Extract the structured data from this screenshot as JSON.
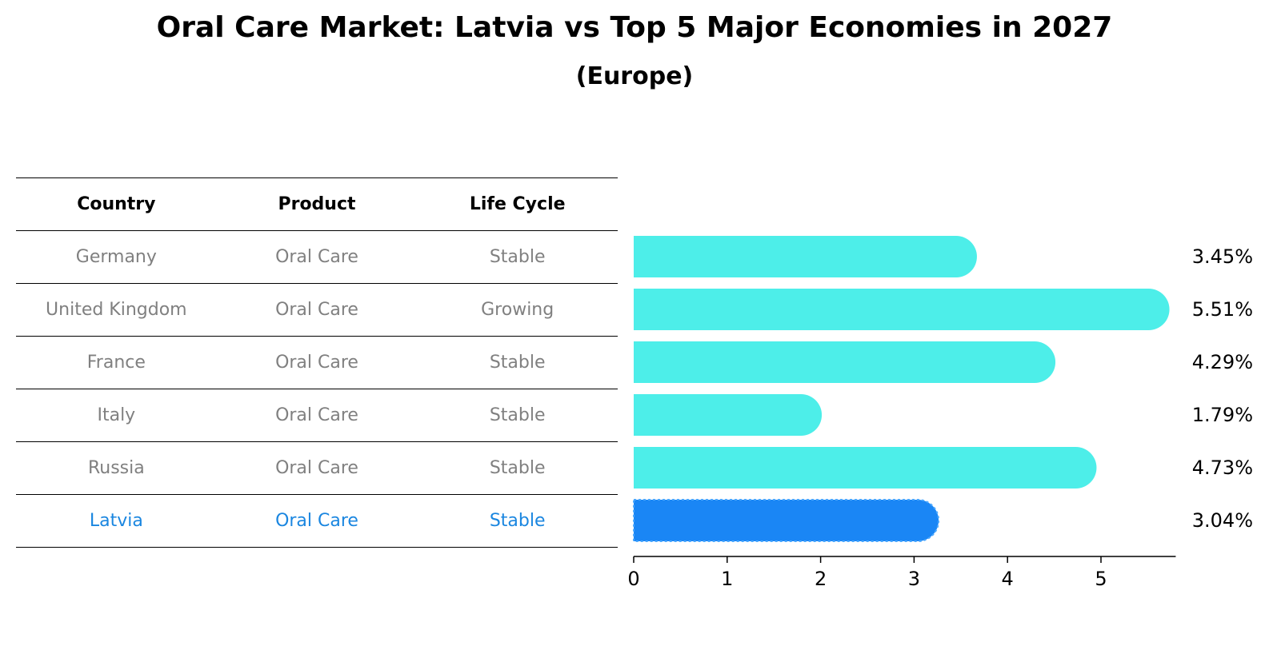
{
  "title": "Oral Care Market: Latvia vs Top 5 Major Economies in 2027",
  "subtitle": "(Europe)",
  "table": {
    "headers": [
      "Country",
      "Product",
      "Life Cycle"
    ],
    "rows": [
      {
        "country": "Germany",
        "product": "Oral Care",
        "life_cycle": "Stable"
      },
      {
        "country": "United Kingdom",
        "product": "Oral Care",
        "life_cycle": "Growing"
      },
      {
        "country": "France",
        "product": "Oral Care",
        "life_cycle": "Stable"
      },
      {
        "country": "Italy",
        "product": "Oral Care",
        "life_cycle": "Stable"
      },
      {
        "country": "Russia",
        "product": "Oral Care",
        "life_cycle": "Stable"
      },
      {
        "country": "Latvia",
        "product": "Oral Care",
        "life_cycle": "Stable"
      }
    ],
    "highlight_country": "Latvia"
  },
  "colors": {
    "bar": "#4deee9",
    "highlight_bar": "#1a86f5",
    "highlight_text": "#1a86e0",
    "muted_text": "#808080"
  },
  "chart_data": {
    "type": "bar",
    "orientation": "horizontal",
    "categories": [
      "Germany",
      "United Kingdom",
      "France",
      "Italy",
      "Russia",
      "Latvia"
    ],
    "values": [
      3.45,
      5.51,
      4.29,
      1.79,
      4.73,
      3.04
    ],
    "value_labels": [
      "3.45%",
      "5.51%",
      "4.29%",
      "1.79%",
      "4.73%",
      "3.04%"
    ],
    "xticks": [
      0,
      1,
      2,
      3,
      4,
      5
    ],
    "xlim": [
      0,
      5.8
    ],
    "highlight": "Latvia"
  }
}
